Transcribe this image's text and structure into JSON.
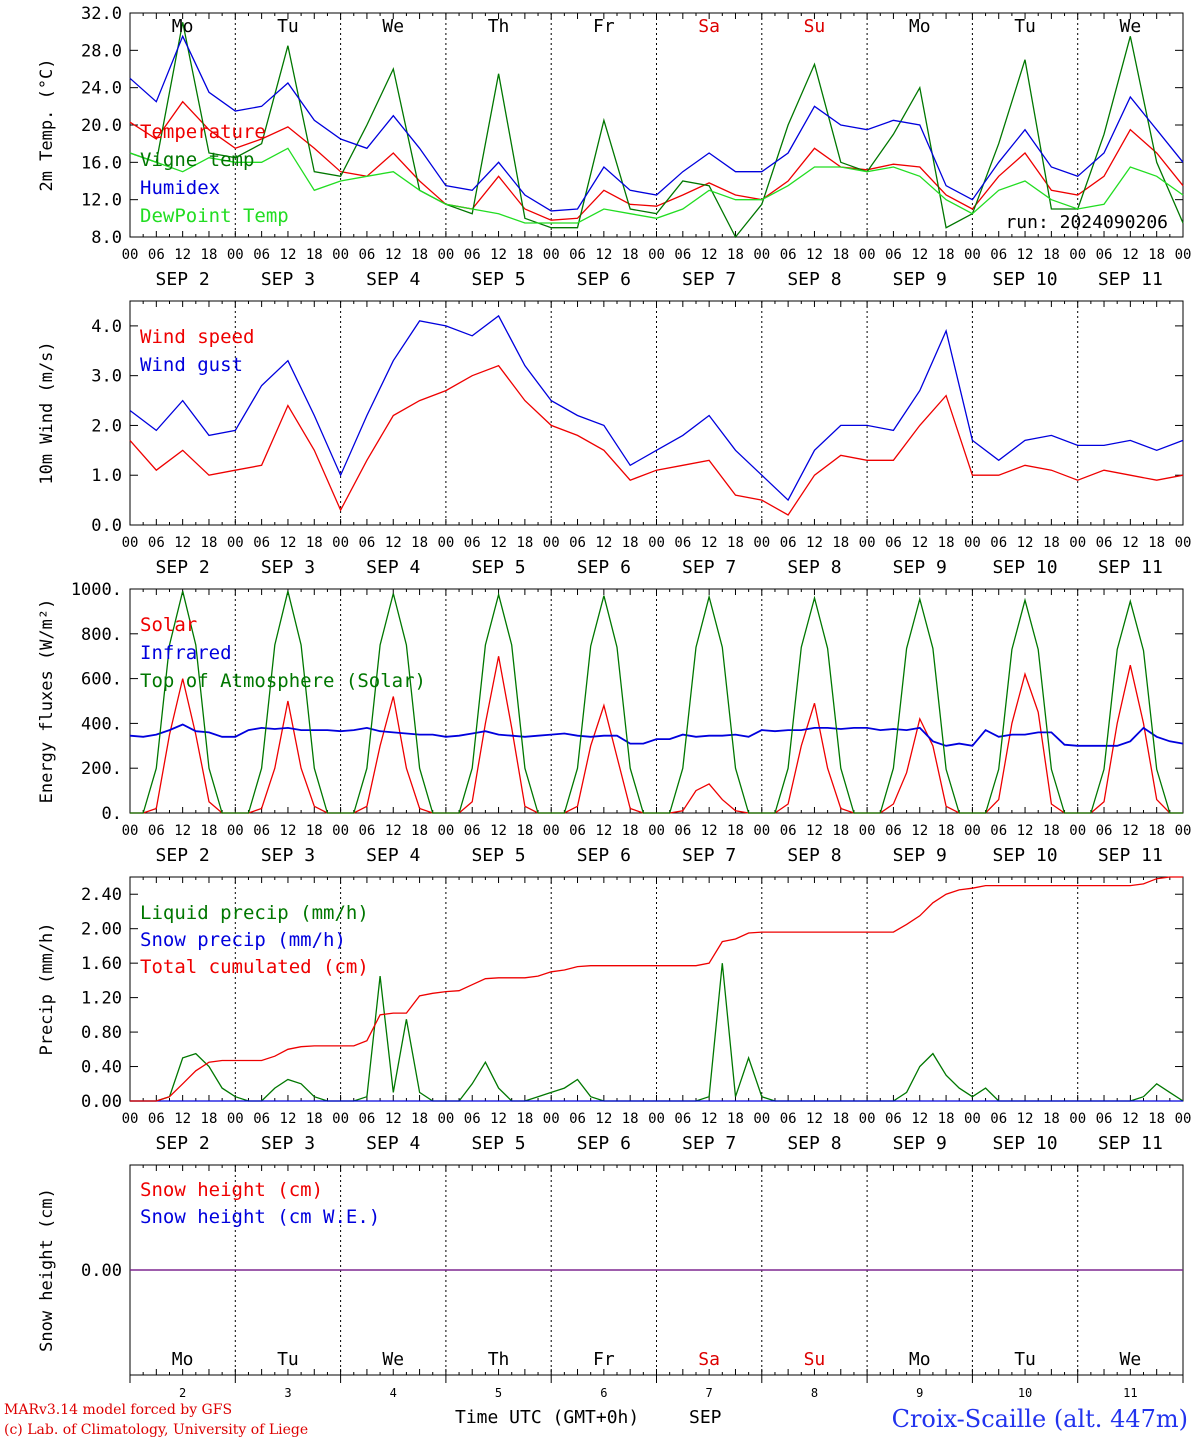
{
  "days": [
    "Mo",
    "Tu",
    "We",
    "Th",
    "Fr",
    "Sa",
    "Su",
    "Mo",
    "Tu",
    "We"
  ],
  "day_colors": [
    "#000000",
    "#000000",
    "#000000",
    "#000000",
    "#000000",
    "#dd0000",
    "#dd0000",
    "#000000",
    "#000000",
    "#000000"
  ],
  "date_labels": [
    "SEP  2",
    "SEP  3",
    "SEP  4",
    "SEP  5",
    "SEP  6",
    "SEP  7",
    "SEP  8",
    "SEP  9",
    "SEP 10",
    "SEP 11"
  ],
  "hour_ticks": [
    "00",
    "06",
    "12",
    "18"
  ],
  "hour_end": "00",
  "bottom_day_numbers": [
    "2",
    "3",
    "4",
    "5",
    "6",
    "7",
    "8",
    "9",
    "10",
    "11"
  ],
  "xaxis_title": "Time UTC (GMT+0h)",
  "xaxis_month": "SEP",
  "footer": {
    "model": "MARv3.14 model forced by GFS",
    "credit": "(c) Lab. of Climatology, University of Liege",
    "station": "Croix-Scaille (alt. 447m)"
  },
  "colors": {
    "red": "#ee0000",
    "blue": "#0000dd",
    "green": "#007700",
    "light_green": "#22dd22",
    "purple": "#7a1f8c"
  },
  "chart_data": [
    {
      "id": "temp",
      "type": "line",
      "ylabel": "2m Temp. (°C)",
      "ylim": [
        8,
        32
      ],
      "yticks": [
        "8.0",
        "12.0",
        "16.0",
        "20.0",
        "24.0",
        "28.0",
        "32.0"
      ],
      "show_days": true,
      "annotation": "run: 2024090206",
      "x": [
        0,
        6,
        12,
        18,
        24,
        30,
        36,
        42,
        48,
        54,
        60,
        66,
        72,
        78,
        84,
        90,
        96,
        102,
        108,
        114,
        120,
        126,
        132,
        138,
        144,
        150,
        156,
        162,
        168,
        174,
        180,
        186,
        192,
        198,
        204,
        210,
        216,
        222,
        228,
        234,
        240
      ],
      "series": [
        {
          "name": "Temperature",
          "color": "#ee0000",
          "values": [
            20.3,
            18.5,
            22.5,
            19.5,
            17.5,
            18.5,
            19.8,
            17.5,
            15.0,
            14.5,
            17.0,
            14.0,
            11.5,
            11.0,
            14.5,
            11.0,
            9.8,
            10.0,
            13.0,
            11.5,
            11.3,
            12.5,
            13.8,
            12.5,
            12.0,
            14.0,
            17.5,
            15.5,
            15.2,
            15.8,
            15.5,
            12.5,
            11.0,
            14.5,
            17.0,
            13.0,
            12.5,
            14.5,
            19.5,
            17.0,
            13.5
          ]
        },
        {
          "name": "Vigne temp",
          "color": "#007700",
          "values": [
            17.0,
            16.0,
            31.0,
            17.0,
            16.5,
            18.0,
            28.5,
            15.0,
            14.5,
            20.0,
            26.0,
            13.0,
            11.5,
            10.5,
            25.5,
            10.0,
            9.0,
            9.0,
            20.5,
            11.0,
            10.5,
            14.0,
            13.5,
            8.0,
            11.5,
            20.0,
            26.5,
            16.0,
            15.0,
            19.0,
            24.0,
            9.0,
            10.5,
            18.0,
            27.0,
            11.0,
            11.0,
            19.0,
            29.5,
            16.0,
            9.5
          ]
        },
        {
          "name": "Humidex",
          "color": "#0000dd",
          "values": [
            25.0,
            22.5,
            29.5,
            23.5,
            21.5,
            22.0,
            24.5,
            20.5,
            18.5,
            17.5,
            21.0,
            17.5,
            13.5,
            13.0,
            16.0,
            12.5,
            10.8,
            11.0,
            15.5,
            13.0,
            12.5,
            15.0,
            17.0,
            15.0,
            15.0,
            17.0,
            22.0,
            20.0,
            19.5,
            20.5,
            20.0,
            13.5,
            12.0,
            16.0,
            19.5,
            15.5,
            14.5,
            17.0,
            23.0,
            19.5,
            16.0
          ]
        },
        {
          "name": "DewPoint Temp",
          "color": "#22dd22",
          "values": [
            17.0,
            16.0,
            15.0,
            16.5,
            16.0,
            16.0,
            17.5,
            13.0,
            14.0,
            14.5,
            15.0,
            13.0,
            11.5,
            11.0,
            10.5,
            9.5,
            9.5,
            9.5,
            11.0,
            10.5,
            10.0,
            11.0,
            13.0,
            12.0,
            12.0,
            13.5,
            15.5,
            15.5,
            15.0,
            15.5,
            14.5,
            12.0,
            10.5,
            13.0,
            14.0,
            12.0,
            11.0,
            11.5,
            15.5,
            14.5,
            12.5
          ]
        }
      ]
    },
    {
      "id": "wind",
      "type": "line",
      "ylabel": "10m Wind (m/s)",
      "ylim": [
        0,
        4.5
      ],
      "yticks": [
        "0.0",
        "1.0",
        "2.0",
        "3.0",
        "4.0"
      ],
      "show_days": false,
      "x": [
        0,
        6,
        12,
        18,
        24,
        30,
        36,
        42,
        48,
        54,
        60,
        66,
        72,
        78,
        84,
        90,
        96,
        102,
        108,
        114,
        120,
        126,
        132,
        138,
        144,
        150,
        156,
        162,
        168,
        174,
        180,
        186,
        192,
        198,
        204,
        210,
        216,
        222,
        228,
        234,
        240
      ],
      "series": [
        {
          "name": "Wind speed",
          "color": "#ee0000",
          "values": [
            1.7,
            1.1,
            1.5,
            1.0,
            1.1,
            1.2,
            2.4,
            1.5,
            0.3,
            1.3,
            2.2,
            2.5,
            2.7,
            3.0,
            3.2,
            2.5,
            2.0,
            1.8,
            1.5,
            0.9,
            1.1,
            1.2,
            1.3,
            0.6,
            0.5,
            0.2,
            1.0,
            1.4,
            1.3,
            1.3,
            2.0,
            2.6,
            1.0,
            1.0,
            1.2,
            1.1,
            0.9,
            1.1,
            1.0,
            0.9,
            1.0
          ]
        },
        {
          "name": "Wind gust",
          "color": "#0000dd",
          "values": [
            2.3,
            1.9,
            2.5,
            1.8,
            1.9,
            2.8,
            3.3,
            2.2,
            1.0,
            2.2,
            3.3,
            4.1,
            4.0,
            3.8,
            4.2,
            3.2,
            2.5,
            2.2,
            2.0,
            1.2,
            1.5,
            1.8,
            2.2,
            1.5,
            1.0,
            0.5,
            1.5,
            2.0,
            2.0,
            1.9,
            2.7,
            3.9,
            1.7,
            1.3,
            1.7,
            1.8,
            1.6,
            1.6,
            1.7,
            1.5,
            1.7
          ]
        }
      ]
    },
    {
      "id": "flux",
      "type": "line",
      "ylabel": "Energy fluxes (W/m²)",
      "ylim": [
        0,
        1000
      ],
      "yticks": [
        "0.",
        "200.",
        "400.",
        "600.",
        "800.",
        "1000."
      ],
      "show_days": false,
      "x": [
        0,
        3,
        6,
        9,
        12,
        15,
        18,
        21,
        24,
        27,
        30,
        33,
        36,
        39,
        42,
        45,
        48,
        51,
        54,
        57,
        60,
        63,
        66,
        69,
        72,
        75,
        78,
        81,
        84,
        87,
        90,
        93,
        96,
        99,
        102,
        105,
        108,
        111,
        114,
        117,
        120,
        123,
        126,
        129,
        132,
        135,
        138,
        141,
        144,
        147,
        150,
        153,
        156,
        159,
        162,
        165,
        168,
        171,
        174,
        177,
        180,
        183,
        186,
        189,
        192,
        195,
        198,
        201,
        204,
        207,
        210,
        213,
        216,
        219,
        222,
        225,
        228,
        231,
        234,
        237,
        240
      ],
      "series": [
        {
          "name": "Solar",
          "color": "#ee0000",
          "values": [
            0,
            0,
            20,
            350,
            600,
            350,
            50,
            0,
            0,
            0,
            20,
            200,
            500,
            200,
            30,
            0,
            0,
            0,
            30,
            300,
            520,
            200,
            20,
            0,
            0,
            0,
            50,
            400,
            700,
            380,
            30,
            0,
            0,
            0,
            30,
            300,
            480,
            250,
            20,
            0,
            0,
            0,
            10,
            100,
            130,
            60,
            10,
            0,
            0,
            0,
            40,
            300,
            490,
            200,
            20,
            0,
            0,
            0,
            40,
            180,
            420,
            300,
            30,
            0,
            0,
            0,
            60,
            400,
            620,
            450,
            40,
            0,
            0,
            0,
            50,
            400,
            660,
            400,
            60,
            0,
            0
          ]
        },
        {
          "name": "Infrared",
          "color": "#0000dd",
          "values": [
            345,
            340,
            350,
            370,
            395,
            365,
            360,
            340,
            340,
            370,
            380,
            375,
            380,
            370,
            370,
            370,
            365,
            370,
            380,
            365,
            360,
            355,
            350,
            350,
            340,
            345,
            355,
            365,
            350,
            345,
            340,
            345,
            350,
            355,
            345,
            340,
            345,
            345,
            310,
            310,
            330,
            330,
            350,
            340,
            345,
            345,
            350,
            340,
            370,
            365,
            370,
            370,
            380,
            380,
            375,
            380,
            380,
            370,
            375,
            370,
            380,
            320,
            300,
            310,
            300,
            370,
            340,
            350,
            350,
            360,
            360,
            305,
            300,
            300,
            300,
            300,
            320,
            380,
            340,
            320,
            310
          ]
        },
        {
          "name": "Top of Atmosphere (Solar)",
          "color": "#007700",
          "values": [
            0,
            0,
            200,
            750,
            990,
            750,
            200,
            0,
            0,
            0,
            200,
            750,
            990,
            750,
            200,
            0,
            0,
            0,
            200,
            750,
            980,
            750,
            200,
            0,
            0,
            0,
            200,
            750,
            975,
            750,
            200,
            0,
            0,
            0,
            200,
            745,
            970,
            740,
            200,
            0,
            0,
            0,
            200,
            740,
            965,
            740,
            200,
            0,
            0,
            0,
            200,
            740,
            960,
            735,
            200,
            0,
            0,
            0,
            200,
            735,
            955,
            735,
            195,
            0,
            0,
            0,
            195,
            730,
            950,
            730,
            195,
            0,
            0,
            0,
            195,
            730,
            945,
            725,
            195,
            0,
            0
          ]
        }
      ]
    },
    {
      "id": "precip",
      "type": "line",
      "ylabel": "Precip (mm/h)",
      "ylim": [
        0,
        2.6
      ],
      "yticks": [
        "0.00",
        "0.40",
        "0.80",
        "1.20",
        "1.60",
        "2.00",
        "2.40"
      ],
      "show_days": false,
      "x": [
        0,
        3,
        6,
        9,
        12,
        15,
        18,
        21,
        24,
        27,
        30,
        33,
        36,
        39,
        42,
        45,
        48,
        51,
        54,
        57,
        60,
        63,
        66,
        69,
        72,
        75,
        78,
        81,
        84,
        87,
        90,
        93,
        96,
        99,
        102,
        105,
        108,
        111,
        114,
        117,
        120,
        123,
        126,
        129,
        132,
        135,
        138,
        141,
        144,
        147,
        150,
        153,
        156,
        159,
        162,
        165,
        168,
        171,
        174,
        177,
        180,
        183,
        186,
        189,
        192,
        195,
        198,
        201,
        204,
        207,
        210,
        213,
        216,
        219,
        222,
        225,
        228,
        231,
        234,
        237,
        240
      ],
      "series": [
        {
          "name": "Liquid precip (mm/h)",
          "color": "#007700",
          "values": [
            0,
            0,
            0,
            0.05,
            0.5,
            0.55,
            0.4,
            0.15,
            0.05,
            0,
            0,
            0.15,
            0.25,
            0.2,
            0.05,
            0,
            0,
            0,
            0.05,
            1.45,
            0.1,
            0.95,
            0.1,
            0,
            0,
            0,
            0.2,
            0.45,
            0.15,
            0,
            0,
            0.05,
            0.1,
            0.15,
            0.25,
            0.05,
            0,
            0,
            0,
            0,
            0,
            0,
            0,
            0,
            0.05,
            1.6,
            0.05,
            0.5,
            0.05,
            0,
            0,
            0,
            0,
            0,
            0,
            0,
            0,
            0,
            0,
            0.1,
            0.4,
            0.55,
            0.3,
            0.15,
            0.05,
            0.15,
            0,
            0,
            0,
            0,
            0,
            0,
            0,
            0,
            0,
            0,
            0,
            0.05,
            0.2,
            0.1,
            0
          ]
        },
        {
          "name": "Snow precip (mm/h)",
          "color": "#0000dd",
          "values": [
            0,
            0,
            0,
            0,
            0,
            0,
            0,
            0,
            0,
            0,
            0,
            0,
            0,
            0,
            0,
            0,
            0,
            0,
            0,
            0,
            0,
            0,
            0,
            0,
            0,
            0,
            0,
            0,
            0,
            0,
            0,
            0,
            0,
            0,
            0,
            0,
            0,
            0,
            0,
            0,
            0,
            0,
            0,
            0,
            0,
            0,
            0,
            0,
            0,
            0,
            0,
            0,
            0,
            0,
            0,
            0,
            0,
            0,
            0,
            0,
            0,
            0,
            0,
            0,
            0,
            0,
            0,
            0,
            0,
            0,
            0,
            0,
            0,
            0,
            0,
            0,
            0,
            0,
            0,
            0,
            0
          ]
        },
        {
          "name": "Total cumulated (cm)",
          "color": "#ee0000",
          "values": [
            0,
            0,
            0,
            0.05,
            0.2,
            0.35,
            0.45,
            0.47,
            0.47,
            0.47,
            0.47,
            0.52,
            0.6,
            0.63,
            0.64,
            0.64,
            0.64,
            0.64,
            0.7,
            1.0,
            1.02,
            1.02,
            1.22,
            1.25,
            1.27,
            1.28,
            1.35,
            1.42,
            1.43,
            1.43,
            1.43,
            1.45,
            1.5,
            1.52,
            1.56,
            1.57,
            1.57,
            1.57,
            1.57,
            1.57,
            1.57,
            1.57,
            1.57,
            1.57,
            1.6,
            1.85,
            1.88,
            1.95,
            1.96,
            1.96,
            1.96,
            1.96,
            1.96,
            1.96,
            1.96,
            1.96,
            1.96,
            1.96,
            1.96,
            2.05,
            2.15,
            2.3,
            2.4,
            2.45,
            2.47,
            2.5,
            2.5,
            2.5,
            2.5,
            2.5,
            2.5,
            2.5,
            2.5,
            2.5,
            2.5,
            2.5,
            2.5,
            2.52,
            2.58,
            2.6,
            2.6
          ]
        }
      ]
    },
    {
      "id": "snow",
      "type": "line",
      "ylabel": "Snow height (cm)",
      "ylim": [
        -1,
        1
      ],
      "yticks": [
        "",
        "0.00",
        ""
      ],
      "show_days": "bottom",
      "x": [
        0,
        240
      ],
      "series": [
        {
          "name": "Snow height (cm)",
          "color": "#ee0000",
          "values": [
            0,
            0
          ]
        },
        {
          "name": "Snow height (cm W.E.)",
          "color": "#0000dd",
          "values": [
            0,
            0
          ]
        }
      ]
    }
  ]
}
